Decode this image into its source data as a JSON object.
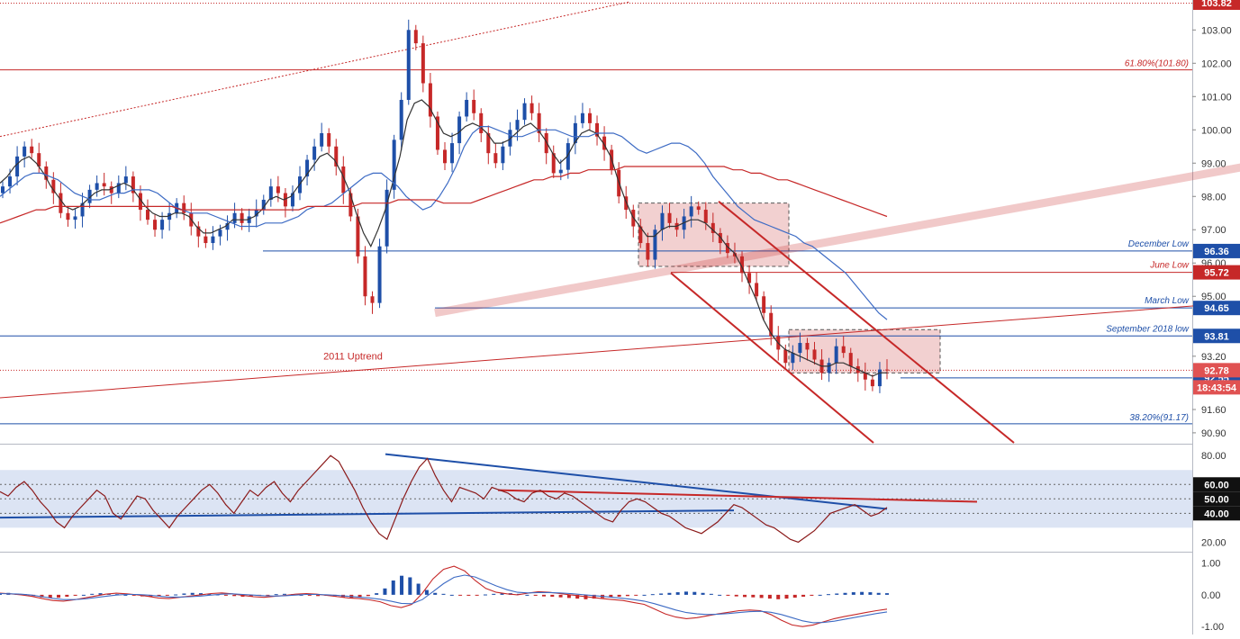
{
  "chart_data": [
    {
      "type": "candlestick",
      "panel": "price",
      "y_axis": {
        "ticks": [
          "103.00",
          "102.00",
          "101.00",
          "100.00",
          "99.00",
          "98.00",
          "97.00",
          "96.00",
          "95.00",
          "93.20",
          "91.60",
          "90.90"
        ],
        "ylim": [
          90.6,
          103.9
        ]
      },
      "current_price": "92.78",
      "countdown": "18:43:54",
      "top_tag": "103.82",
      "levels": [
        {
          "name": "December Low",
          "value": 96.36,
          "tag": "96.36",
          "color": "#1e4fa8"
        },
        {
          "name": "June Low",
          "value": 95.72,
          "tag": "95.72",
          "color": "#c62828"
        },
        {
          "name": "March Low",
          "value": 94.65,
          "tag": "94.65",
          "color": "#1e4fa8"
        },
        {
          "name": "September 2018 low",
          "value": 93.81,
          "tag": "93.81",
          "color": "#1e4fa8"
        },
        {
          "name": "",
          "value": 92.55,
          "tag": "92.55",
          "color": "#1e4fa8"
        }
      ],
      "fib_levels": [
        {
          "label": "61.80%(101.80)",
          "value": 101.8,
          "color": "#c62828"
        },
        {
          "label": "38.20%(91.17)",
          "value": 91.17,
          "color": "#1e4fa8"
        }
      ],
      "annotations": [
        "2011 Uptrend"
      ],
      "series": [
        {
          "kind": "close_path",
          "color": "#1e4fa8",
          "values": [
            98.3,
            98.6,
            99.2,
            99.5,
            99.3,
            98.9,
            98.5,
            98.1,
            97.5,
            97.3,
            97.4,
            97.8,
            98.2,
            98.4,
            98.3,
            98.1,
            98.4,
            98.6,
            98.1,
            97.6,
            97.3,
            97.0,
            97.3,
            97.5,
            97.8,
            97.5,
            97.1,
            96.8,
            96.6,
            96.8,
            97.0,
            97.2,
            97.5,
            97.2,
            97.4,
            97.6,
            97.9,
            98.3,
            98.1,
            97.7,
            98.1,
            98.6,
            99.1,
            99.5,
            99.9,
            99.5,
            98.9,
            98.1,
            97.4,
            96.2,
            95.0,
            94.8,
            96.5,
            98.2,
            99.7,
            100.9,
            103.0,
            102.6,
            101.4,
            100.4,
            99.4,
            99.0,
            99.6,
            100.4,
            100.9,
            100.5,
            99.9,
            99.3,
            99.0,
            99.5,
            100.0,
            100.3,
            100.8,
            100.5,
            99.9,
            99.3,
            98.7,
            98.8,
            99.6,
            100.2,
            100.5,
            100.2,
            99.8,
            99.4,
            98.8,
            98.0,
            97.6,
            97.1,
            96.6,
            96.1,
            97.0,
            97.5,
            97.2,
            97.0,
            97.4,
            97.7,
            97.6,
            97.2,
            96.9,
            96.6,
            96.3,
            96.2,
            95.7,
            95.4,
            95.0,
            94.5,
            93.8,
            93.4,
            93.0,
            93.3,
            93.6,
            93.4,
            93.1,
            92.7,
            93.0,
            93.5,
            93.3,
            92.9,
            92.7,
            92.5,
            92.3,
            92.8,
            92.78
          ]
        },
        {
          "kind": "sma",
          "color": "#333333",
          "values": [
            98.4,
            98.6,
            98.9,
            99.1,
            99.2,
            99.0,
            98.7,
            98.3,
            98.0,
            97.7,
            97.6,
            97.7,
            97.9,
            98.1,
            98.2,
            98.2,
            98.3,
            98.4,
            98.3,
            98.0,
            97.7,
            97.5,
            97.4,
            97.4,
            97.5,
            97.5,
            97.4,
            97.1,
            96.9,
            96.9,
            97.0,
            97.1,
            97.3,
            97.3,
            97.3,
            97.4,
            97.6,
            97.9,
            98.0,
            97.9,
            98.0,
            98.3,
            98.6,
            98.9,
            99.2,
            99.3,
            99.1,
            98.7,
            98.2,
            97.5,
            96.9,
            96.5,
            97.0,
            97.6,
            98.4,
            99.2,
            100.3,
            100.8,
            100.9,
            100.7,
            100.3,
            99.9,
            99.8,
            99.9,
            100.1,
            100.2,
            100.1,
            99.9,
            99.6,
            99.6,
            99.7,
            99.9,
            100.1,
            100.2,
            100.0,
            99.7,
            99.3,
            99.0,
            99.2,
            99.6,
            99.9,
            100.0,
            99.9,
            99.6,
            99.2,
            98.5,
            97.9,
            97.4,
            97.1,
            96.8,
            96.8,
            97.0,
            97.1,
            97.1,
            97.2,
            97.3,
            97.3,
            97.2,
            97.0,
            96.8,
            96.5,
            96.3,
            95.9,
            95.4,
            94.9,
            94.3,
            93.9,
            93.6,
            93.4,
            93.3,
            93.2,
            93.1,
            93.0,
            92.9,
            92.9,
            93.0,
            93.0,
            92.9,
            92.8,
            92.7,
            92.6,
            92.7,
            92.7
          ]
        },
        {
          "kind": "sma",
          "color": "#3d6bc4",
          "values": [
            98.0,
            98.2,
            98.4,
            98.6,
            98.7,
            98.7,
            98.6,
            98.5,
            98.3,
            98.1,
            98.0,
            97.9,
            97.9,
            98.0,
            98.1,
            98.1,
            98.2,
            98.2,
            98.2,
            98.1,
            97.9,
            97.7,
            97.6,
            97.5,
            97.5,
            97.5,
            97.4,
            97.3,
            97.2,
            97.1,
            97.1,
            97.1,
            97.2,
            97.2,
            97.2,
            97.3,
            97.4,
            97.6,
            97.7,
            97.7,
            97.8,
            98.0,
            98.2,
            98.4,
            98.6,
            98.7,
            98.7,
            98.5,
            98.3,
            98.0,
            97.8,
            97.6,
            97.7,
            98.0,
            98.4,
            98.9,
            99.5,
            99.9,
            100.1,
            100.1,
            100.0,
            99.9,
            99.8,
            99.8,
            99.9,
            100.0,
            100.0,
            100.0,
            99.9,
            99.8,
            99.8,
            99.8,
            99.9,
            99.9,
            99.9,
            99.8,
            99.6,
            99.4,
            99.3,
            99.4,
            99.5,
            99.6,
            99.6,
            99.5,
            99.3,
            99.0,
            98.6,
            98.3,
            98.0,
            97.7,
            97.5,
            97.3,
            97.2,
            97.1,
            97.0,
            96.9,
            96.8,
            96.6,
            96.5,
            96.3,
            96.1,
            95.9,
            95.7,
            95.4,
            95.1,
            94.8,
            94.5,
            94.3
          ]
        },
        {
          "kind": "sma",
          "color": "#c62828",
          "values": [
            97.2,
            97.3,
            97.4,
            97.5,
            97.6,
            97.6,
            97.7,
            97.7,
            97.7,
            97.7,
            97.7,
            97.7,
            97.7,
            97.7,
            97.7,
            97.7,
            97.7,
            97.7,
            97.7,
            97.7,
            97.6,
            97.6,
            97.6,
            97.6,
            97.6,
            97.6,
            97.6,
            97.6,
            97.6,
            97.6,
            97.6,
            97.6,
            97.6,
            97.6,
            97.7,
            97.7,
            97.7,
            97.7,
            97.7,
            97.7,
            97.8,
            97.8,
            97.8,
            97.8,
            97.9,
            97.9,
            97.9,
            97.9,
            97.9,
            97.8,
            97.8,
            97.8,
            97.8,
            97.9,
            98.0,
            98.1,
            98.2,
            98.3,
            98.4,
            98.5,
            98.5,
            98.6,
            98.6,
            98.7,
            98.7,
            98.8,
            98.8,
            98.8,
            98.8,
            98.9,
            98.9,
            98.9,
            98.9,
            98.9,
            98.9,
            98.9,
            98.9,
            98.9,
            98.9,
            98.9,
            98.9,
            98.8,
            98.8,
            98.7,
            98.7,
            98.6,
            98.5,
            98.5,
            98.4,
            98.3,
            98.2,
            98.1,
            98.0,
            97.9,
            97.8,
            97.7,
            97.6,
            97.5,
            97.4
          ]
        }
      ]
    },
    {
      "type": "line",
      "panel": "rsi",
      "y_axis": {
        "ticks": [
          "80.00",
          "20.00"
        ],
        "ylim": [
          14,
          87
        ]
      },
      "tags": [
        {
          "value": 60,
          "label": "60.00"
        },
        {
          "value": 50,
          "label": "50.00"
        },
        {
          "value": 40,
          "label": "40.00"
        }
      ],
      "band": [
        30,
        70
      ],
      "series": [
        {
          "kind": "rsi",
          "color": "#8b1a1a",
          "values": [
            55,
            52,
            58,
            62,
            56,
            48,
            42,
            34,
            30,
            38,
            44,
            50,
            56,
            52,
            40,
            36,
            44,
            52,
            50,
            42,
            36,
            30,
            38,
            44,
            50,
            56,
            60,
            54,
            46,
            40,
            48,
            56,
            52,
            58,
            62,
            54,
            48,
            56,
            62,
            68,
            74,
            80,
            76,
            66,
            56,
            44,
            34,
            26,
            22,
            36,
            50,
            62,
            72,
            78,
            66,
            56,
            48,
            58,
            56,
            54,
            50,
            58,
            56,
            54,
            50,
            48,
            54,
            56,
            52,
            50,
            54,
            52,
            48,
            44,
            40,
            36,
            34,
            42,
            48,
            50,
            48,
            44,
            40,
            38,
            34,
            30,
            28,
            26,
            30,
            34,
            40,
            46,
            44,
            40,
            36,
            32,
            30,
            26,
            22,
            20,
            24,
            28,
            34,
            40,
            42,
            44,
            46,
            42,
            38,
            40,
            44
          ]
        }
      ]
    },
    {
      "type": "bar",
      "panel": "macd",
      "y_axis": {
        "ticks": [
          "1.00",
          "0.00",
          "-1.00"
        ],
        "ylim": [
          -1.25,
          1.3
        ]
      },
      "series": [
        {
          "kind": "histogram",
          "color_pos": "#1e4fa8",
          "color_neg": "#c62828",
          "values": [
            0.05,
            0.06,
            0.04,
            0.02,
            -0.04,
            -0.08,
            -0.1,
            -0.09,
            -0.06,
            -0.03,
            0.0,
            0.03,
            0.05,
            0.04,
            0.02,
            0.0,
            -0.02,
            -0.05,
            -0.06,
            -0.04,
            -0.02,
            0.01,
            0.04,
            0.06,
            0.05,
            0.03,
            0.01,
            -0.02,
            -0.04,
            -0.06,
            -0.05,
            -0.03,
            -0.01,
            0.02,
            0.03,
            0.02,
            0.0,
            -0.02,
            -0.04,
            -0.03,
            -0.05,
            -0.08,
            -0.1,
            -0.07,
            -0.04,
            0.05,
            0.2,
            0.45,
            0.6,
            0.55,
            0.35,
            0.15,
            0.06,
            0.03,
            0.0,
            -0.02,
            -0.03,
            -0.01,
            0.01,
            0.03,
            0.04,
            0.05,
            0.03,
            0.0,
            -0.03,
            -0.05,
            -0.06,
            -0.08,
            -0.1,
            -0.12,
            -0.14,
            -0.12,
            -0.1,
            -0.08,
            -0.06,
            -0.04,
            -0.02,
            0.0,
            0.02,
            0.04,
            0.06,
            0.08,
            0.1,
            0.09,
            0.06,
            0.03,
            0.0,
            -0.03,
            -0.05,
            -0.07,
            -0.08,
            -0.1,
            -0.12,
            -0.14,
            -0.12,
            -0.09,
            -0.06,
            -0.03,
            0.0,
            0.02,
            0.04,
            0.06,
            0.08,
            0.09,
            0.08,
            0.06,
            0.05
          ]
        },
        {
          "kind": "macd_line",
          "color": "#c62828",
          "values": [
            0.05,
            0.03,
            0.0,
            -0.05,
            -0.12,
            -0.18,
            -0.2,
            -0.16,
            -0.1,
            -0.04,
            0.02,
            0.05,
            0.03,
            0.0,
            -0.05,
            -0.1,
            -0.12,
            -0.08,
            -0.04,
            0.0,
            0.04,
            0.06,
            0.03,
            -0.02,
            -0.06,
            -0.08,
            -0.05,
            -0.02,
            0.02,
            0.04,
            0.02,
            -0.02,
            -0.06,
            -0.1,
            -0.12,
            -0.16,
            -0.22,
            -0.34,
            -0.4,
            -0.3,
            0.05,
            0.5,
            0.8,
            0.9,
            0.75,
            0.45,
            0.2,
            0.08,
            0.03,
            0.0,
            0.05,
            0.1,
            0.08,
            0.04,
            0.0,
            -0.04,
            -0.08,
            -0.12,
            -0.15,
            -0.18,
            -0.24,
            -0.3,
            -0.45,
            -0.6,
            -0.7,
            -0.75,
            -0.72,
            -0.66,
            -0.6,
            -0.55,
            -0.5,
            -0.48,
            -0.5,
            -0.62,
            -0.8,
            -0.95,
            -1.0,
            -0.95,
            -0.85,
            -0.75,
            -0.68,
            -0.62,
            -0.56,
            -0.5,
            -0.45
          ]
        },
        {
          "kind": "signal_line",
          "color": "#3d6bc4",
          "values": [
            0.04,
            0.03,
            0.02,
            -0.01,
            -0.06,
            -0.11,
            -0.15,
            -0.15,
            -0.13,
            -0.09,
            -0.05,
            -0.01,
            0.01,
            0.01,
            -0.01,
            -0.04,
            -0.07,
            -0.07,
            -0.06,
            -0.04,
            -0.01,
            0.02,
            0.03,
            0.01,
            -0.01,
            -0.03,
            -0.04,
            -0.03,
            -0.01,
            0.01,
            0.01,
            0.0,
            -0.02,
            -0.05,
            -0.07,
            -0.1,
            -0.14,
            -0.2,
            -0.27,
            -0.28,
            -0.15,
            0.1,
            0.35,
            0.55,
            0.62,
            0.56,
            0.42,
            0.28,
            0.16,
            0.08,
            0.06,
            0.07,
            0.07,
            0.06,
            0.04,
            0.01,
            -0.02,
            -0.05,
            -0.08,
            -0.11,
            -0.15,
            -0.2,
            -0.28,
            -0.38,
            -0.48,
            -0.56,
            -0.6,
            -0.62,
            -0.61,
            -0.59,
            -0.56,
            -0.53,
            -0.52,
            -0.55,
            -0.62,
            -0.72,
            -0.82,
            -0.88,
            -0.87,
            -0.83,
            -0.77,
            -0.71,
            -0.65,
            -0.59,
            -0.54
          ]
        }
      ]
    }
  ]
}
